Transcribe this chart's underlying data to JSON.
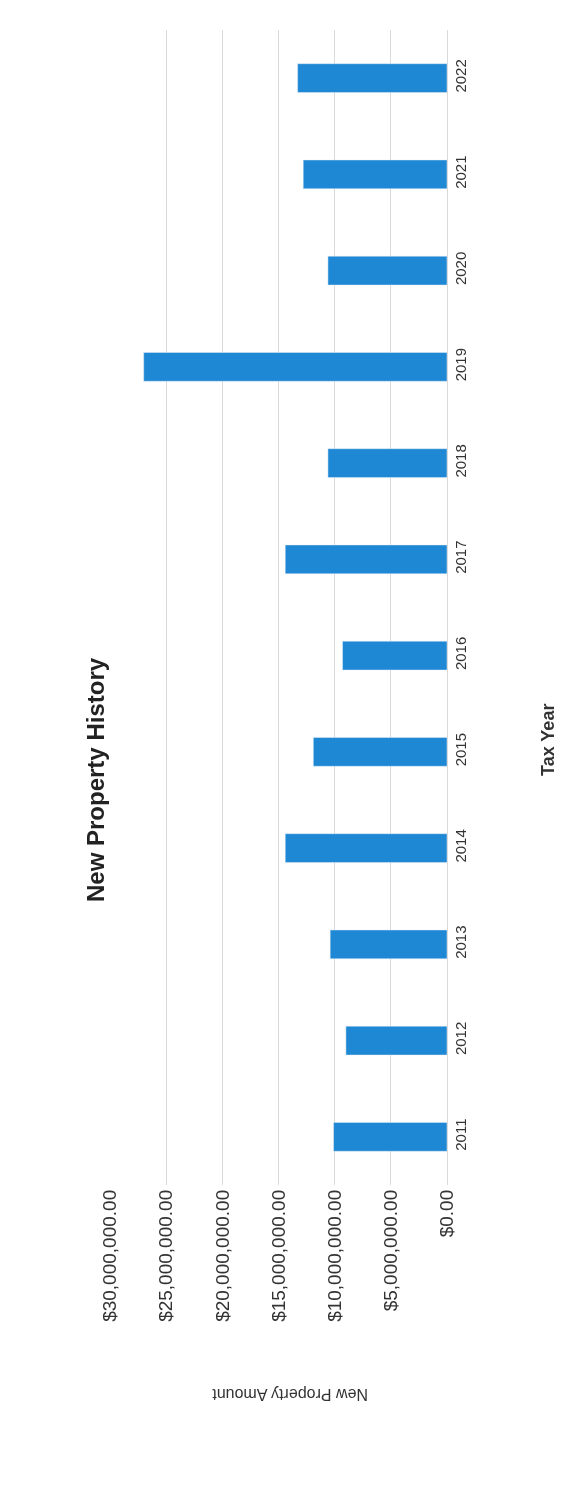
{
  "chart_data": {
    "type": "bar",
    "orientation": "horizontal",
    "title": "New Property History",
    "xlabel": "New Property Amount",
    "ylabel": "Tax Year",
    "categories": [
      "2022",
      "2021",
      "2020",
      "2019",
      "2018",
      "2017",
      "2016",
      "2015",
      "2014",
      "2013",
      "2012",
      "2011"
    ],
    "values": [
      13300000.0,
      12800000.0,
      10600000.0,
      27000000.0,
      10600000.0,
      14400000.0,
      9300000.0,
      11900000.0,
      14400000.0,
      10400000.0,
      9000000.0,
      10100000.0
    ],
    "color": "#1f88d4",
    "xlim": [
      30000000,
      0
    ],
    "xticks": [
      {
        "value": 0,
        "label": "$0.00"
      },
      {
        "value": 5000000,
        "label": "$5,000,000.00"
      },
      {
        "value": 10000000,
        "label": "$10,000,000.00"
      },
      {
        "value": 15000000,
        "label": "$15,000,000.00"
      },
      {
        "value": 20000000,
        "label": "$20,000,000.00"
      },
      {
        "value": 25000000,
        "label": "$25,000,000.00"
      },
      {
        "value": 30000000,
        "label": "$30,000,000.00"
      }
    ],
    "grid": "x"
  }
}
